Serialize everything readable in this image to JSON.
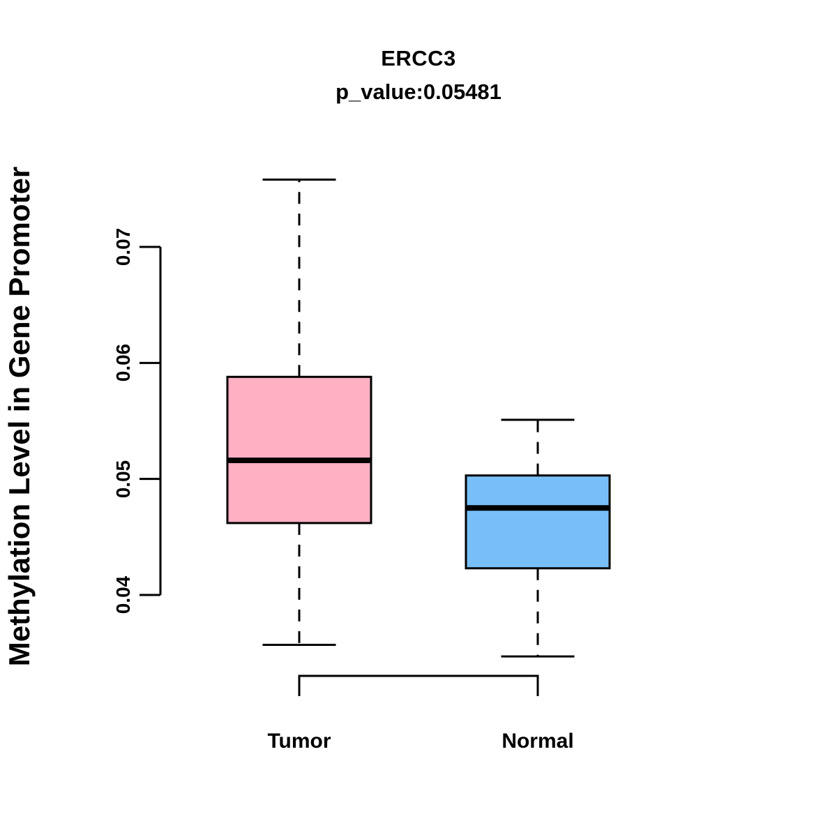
{
  "page": {
    "background": "#FFFFFF",
    "text_color": "#000000"
  },
  "chart_data": {
    "type": "boxplot",
    "title": "ERCC3",
    "subtitle": "p_value:0.05481",
    "ylabel": "Methylation Level in Gene Promoter",
    "xlabel": "",
    "categories": [
      "Tumor",
      "Normal"
    ],
    "series": [
      {
        "name": "Tumor",
        "whisker_low": 0.0357,
        "q1": 0.0462,
        "median": 0.0516,
        "q3": 0.0588,
        "whisker_high": 0.0758,
        "fill_color": "#FFB0C3"
      },
      {
        "name": "Normal",
        "whisker_low": 0.0347,
        "q1": 0.0423,
        "median": 0.0475,
        "q3": 0.0503,
        "whisker_high": 0.0551,
        "fill_color": "#78BFF7"
      }
    ],
    "yticks": [
      0.04,
      0.05,
      0.06,
      0.07
    ],
    "ytick_labels": [
      "0.04",
      "0.05",
      "0.06",
      "0.07"
    ],
    "ylim": [
      0.04,
      0.07
    ],
    "axis_color": "#000000",
    "median_color": "#000000",
    "grid": false,
    "legend": false
  }
}
